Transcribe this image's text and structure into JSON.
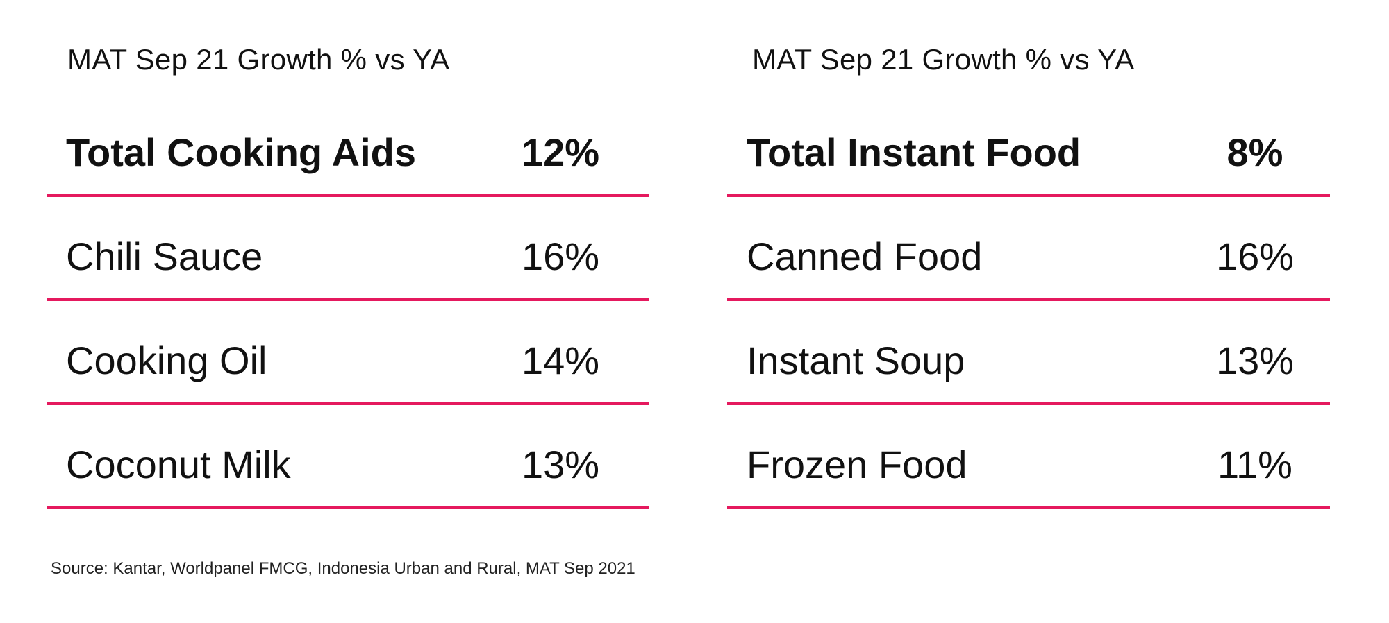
{
  "colors": {
    "divider": "#e5195e",
    "text": "#111111",
    "background": "#ffffff"
  },
  "chart_data": [
    {
      "type": "table",
      "subtitle": "MAT Sep 21 Growth % vs YA",
      "total": {
        "label": "Total Cooking Aids",
        "value": "12%"
      },
      "rows": [
        {
          "label": "Chili Sauce",
          "value": "16%"
        },
        {
          "label": "Cooking Oil",
          "value": "14%"
        },
        {
          "label": "Coconut Milk",
          "value": "13%"
        }
      ]
    },
    {
      "type": "table",
      "subtitle": "MAT Sep 21 Growth % vs YA",
      "total": {
        "label": "Total Instant Food",
        "value": "8%"
      },
      "rows": [
        {
          "label": "Canned Food",
          "value": "16%"
        },
        {
          "label": "Instant Soup",
          "value": "13%"
        },
        {
          "label": "Frozen Food",
          "value": "11%"
        }
      ]
    }
  ],
  "footer": {
    "source": "Source: Kantar, Worldpanel FMCG, Indonesia Urban and Rural, MAT Sep 2021"
  }
}
